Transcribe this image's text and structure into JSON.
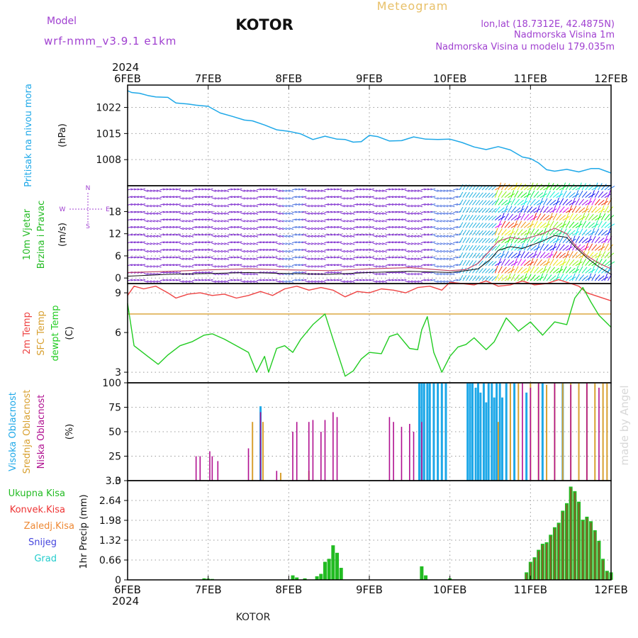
{
  "header": {
    "model_label": "Model",
    "model_name": "wrf-nmm_v3.9.1 e1km",
    "station": "KOTOR",
    "product": "Meteogram",
    "lonlat": "lon,lat (18.7312E, 42.4875N)",
    "altitude": "Nadmorska Visina 1m",
    "model_altitude": "Nadmorska Visina u modelu 179.035m",
    "watermark": "made by Angel",
    "footer_station": "KOTOR",
    "year_top": "2024",
    "year_bottom": "2024"
  },
  "colors": {
    "pressure": "#1ea8e8",
    "temp": "#ee4444",
    "sfc": "#d8a030",
    "dew": "#22cc22",
    "high": "#1ea8e8",
    "mid": "#d8a030",
    "low": "#b01090",
    "wind_barb": "#7722cc",
    "total": "#22bb22",
    "conv": "#ee3333",
    "frozen": "#ee8833",
    "snow": "#4444dd",
    "hail": "#22cccc"
  },
  "chart_data": [
    {
      "type": "line",
      "panel": "pressure",
      "ylabel_lines": [
        "Pritisak na nivou mora",
        "(hPa)"
      ],
      "x_ticks": [
        "6FEB",
        "7FEB",
        "8FEB",
        "9FEB",
        "10FEB",
        "11FEB",
        "12FEB"
      ],
      "ylim": [
        1001,
        1028
      ],
      "y_ticks": [
        1008,
        1015,
        1022
      ],
      "series": [
        {
          "days": [
            0,
            0.05,
            0.15,
            0.25,
            0.35,
            0.5,
            0.6,
            0.75,
            0.85,
            1.0,
            1.15,
            1.3,
            1.45,
            1.55,
            1.7,
            1.85,
            2.0,
            2.15,
            2.3,
            2.45,
            2.6,
            2.7,
            2.8,
            2.9,
            3.0,
            3.1,
            3.25,
            3.4,
            3.55,
            3.7,
            3.85,
            4.0,
            4.15,
            4.3,
            4.45,
            4.6,
            4.75,
            4.9,
            5.0,
            5.1,
            5.2,
            5.3,
            5.45,
            5.6,
            5.75,
            5.85,
            5.95,
            6.0
          ],
          "values": [
            1026.5,
            1026,
            1025.8,
            1025.2,
            1024.8,
            1024.7,
            1023.2,
            1022.9,
            1022.6,
            1022.3,
            1020.5,
            1019.6,
            1018.6,
            1018.4,
            1017.3,
            1016,
            1015.6,
            1014.9,
            1013.4,
            1014.3,
            1013.5,
            1013.4,
            1012.7,
            1012.8,
            1014.5,
            1014.2,
            1013,
            1013.1,
            1014.1,
            1013.5,
            1013.4,
            1013.5,
            1012.6,
            1011.4,
            1010.7,
            1011.5,
            1010.6,
            1008.7,
            1008.3,
            1007.1,
            1005.3,
            1004.9,
            1005.4,
            1004.7,
            1005.6,
            1005.6,
            1004.8,
            1004.4
          ]
        }
      ]
    },
    {
      "type": "line",
      "panel": "wind",
      "ylabel_lines": [
        "10m Vjetar",
        "Brzina i Pravac",
        "(m/s)"
      ],
      "compass": [
        "W",
        "E",
        "S",
        "N"
      ],
      "ylim": [
        -1.5,
        25
      ],
      "y_ticks": [
        0,
        6,
        12,
        18
      ],
      "series": [
        {
          "name": "wind_speed",
          "days": [
            0,
            0.5,
            1.0,
            1.5,
            2.0,
            2.5,
            3.0,
            3.5,
            4.0,
            4.2,
            4.35,
            4.5,
            4.6,
            4.75,
            4.9,
            5.0,
            5.15,
            5.3,
            5.45,
            5.55,
            5.7,
            5.85,
            6.0
          ],
          "values": [
            1.5,
            1.8,
            2.2,
            2.5,
            2.2,
            2.0,
            2.5,
            2.8,
            2.0,
            2.3,
            4.0,
            7.5,
            10,
            11,
            10.5,
            11,
            12,
            13.5,
            12,
            9,
            6,
            4,
            2.5
          ]
        },
        {
          "name": "wind_gust",
          "days": [
            0,
            0.5,
            1.0,
            1.5,
            2.0,
            2.5,
            3.0,
            3.5,
            4.0,
            4.2,
            4.35,
            4.5,
            4.6,
            4.75,
            4.9,
            5.0,
            5.15,
            5.3,
            5.45,
            5.55,
            5.7,
            5.85,
            6.0
          ],
          "values": [
            0.5,
            1.0,
            1.2,
            1.5,
            1.2,
            1.0,
            1.5,
            1.8,
            1.5,
            2.0,
            2.5,
            5.0,
            7.5,
            8.5,
            8.0,
            8.8,
            10,
            11.5,
            11,
            8.5,
            5.5,
            3.0,
            1.0
          ]
        }
      ]
    },
    {
      "type": "line",
      "panel": "temperature",
      "ylabel_lines": [
        "2m Temp",
        "SFC Temp",
        "dewpt Temp",
        "(C)"
      ],
      "ylim": [
        2.2,
        9.7
      ],
      "y_ticks": [
        3,
        6,
        9
      ],
      "series": [
        {
          "name": "2m Temp",
          "days": [
            0,
            0.08,
            0.2,
            0.35,
            0.5,
            0.6,
            0.75,
            0.9,
            1.05,
            1.2,
            1.35,
            1.5,
            1.65,
            1.8,
            1.95,
            2.1,
            2.25,
            2.4,
            2.55,
            2.7,
            2.85,
            3.0,
            3.15,
            3.3,
            3.45,
            3.6,
            3.75,
            3.9,
            4.0,
            4.15,
            4.3,
            4.45,
            4.6,
            4.75,
            4.9,
            5.05,
            5.2,
            5.35,
            5.5,
            5.6,
            5.7,
            5.85,
            6.0
          ],
          "values": [
            8.8,
            9.5,
            9.3,
            9.5,
            9.0,
            8.6,
            8.9,
            9.0,
            8.8,
            8.9,
            8.6,
            8.8,
            9.1,
            8.8,
            9.3,
            9.5,
            9.2,
            9.4,
            9.2,
            8.7,
            9.1,
            9.0,
            9.3,
            9.2,
            9.0,
            9.4,
            9.5,
            9.2,
            9.8,
            9.7,
            9.6,
            9.9,
            9.5,
            9.6,
            9.9,
            9.6,
            9.7,
            10.0,
            9.7,
            9.5,
            9.0,
            8.7,
            8.4
          ]
        },
        {
          "name": "SFC Temp",
          "days": [
            0,
            6.0
          ],
          "values": [
            7.4,
            7.4
          ]
        },
        {
          "name": "dewpt Temp",
          "days": [
            0,
            0.08,
            0.25,
            0.38,
            0.5,
            0.65,
            0.8,
            0.95,
            1.05,
            1.2,
            1.35,
            1.5,
            1.6,
            1.7,
            1.75,
            1.85,
            1.95,
            2.05,
            2.15,
            2.3,
            2.45,
            2.55,
            2.7,
            2.8,
            2.9,
            3.0,
            3.15,
            3.25,
            3.35,
            3.5,
            3.6,
            3.65,
            3.72,
            3.8,
            3.9,
            4.0,
            4.1,
            4.2,
            4.3,
            4.45,
            4.55,
            4.7,
            4.85,
            5.0,
            5.15,
            5.3,
            5.45,
            5.55,
            5.65,
            5.75,
            5.85,
            6.0
          ],
          "values": [
            8.2,
            5.0,
            4.2,
            3.6,
            4.3,
            5.0,
            5.3,
            5.8,
            5.9,
            5.5,
            5.0,
            4.5,
            3.0,
            4.2,
            3.0,
            4.8,
            5.0,
            4.5,
            5.5,
            6.6,
            7.4,
            5.5,
            2.7,
            3.1,
            4.0,
            4.5,
            4.4,
            5.7,
            5.9,
            4.8,
            4.7,
            6.2,
            7.2,
            4.5,
            3.0,
            4.2,
            4.9,
            5.1,
            5.6,
            4.7,
            5.3,
            7.1,
            6.1,
            6.8,
            5.8,
            6.8,
            6.6,
            8.6,
            9.4,
            8.3,
            7.3,
            6.4
          ]
        }
      ]
    },
    {
      "type": "bar",
      "panel": "clouds",
      "ylabel_lines": [
        "Visoka Oblacnost",
        "Srednja Oblacnost",
        "Niska Oblacnost",
        "(%)"
      ],
      "ylim": [
        0,
        100
      ],
      "y_ticks": [
        0,
        25,
        50,
        75,
        100
      ],
      "series": [
        {
          "name": "Niska Oblacnost",
          "days": [
            0.85,
            0.9,
            1.02,
            1.05,
            1.12,
            1.5,
            1.65,
            1.85,
            2.05,
            2.1,
            2.25,
            2.3,
            2.4,
            2.45,
            2.55,
            2.6,
            3.25,
            3.3,
            3.4,
            3.5,
            3.55,
            3.65,
            4.9,
            5.0,
            5.1,
            5.3,
            5.5,
            5.7,
            5.85
          ],
          "values": [
            25,
            25,
            30,
            25,
            20,
            33,
            70,
            10,
            50,
            60,
            60,
            62,
            50,
            62,
            70,
            65,
            65,
            60,
            55,
            58,
            50,
            60,
            100,
            95,
            100,
            100,
            98,
            100,
            95
          ]
        },
        {
          "name": "Srednja Oblacnost",
          "days": [
            1.55,
            1.68,
            1.9,
            2.25,
            4.6,
            4.75,
            4.85,
            5.0,
            5.1,
            5.2,
            5.3,
            5.4,
            5.5,
            5.6,
            5.7,
            5.8,
            5.9,
            5.95
          ],
          "values": [
            60,
            60,
            8,
            10,
            60,
            100,
            100,
            100,
            100,
            98,
            100,
            100,
            100,
            100,
            100,
            100,
            100,
            100
          ]
        },
        {
          "name": "Visoka Oblacnost",
          "days": [
            1.65,
            3.62,
            3.65,
            3.68,
            3.72,
            3.75,
            3.8,
            3.85,
            3.9,
            3.95,
            4.22,
            4.25,
            4.28,
            4.32,
            4.35,
            4.38,
            4.42,
            4.45,
            4.48,
            4.52,
            4.55,
            4.58,
            4.62,
            4.65,
            4.7,
            4.8,
            4.95,
            5.15,
            5.4
          ],
          "values": [
            76,
            100,
            100,
            100,
            100,
            100,
            100,
            100,
            100,
            100,
            100,
            100,
            100,
            95,
            100,
            90,
            100,
            80,
            100,
            100,
            85,
            100,
            100,
            85,
            100,
            100,
            90,
            100,
            100
          ]
        }
      ]
    },
    {
      "type": "bar",
      "panel": "precip",
      "ylabel_lines": [
        "1hr Precip (mm)"
      ],
      "legend": [
        "Ukupna Kisa",
        "Konvek.Kisa",
        "Zaledj.Kisa",
        "Snijeg",
        "Grad"
      ],
      "ylim": [
        0,
        3.3
      ],
      "y_ticks": [
        0,
        0.66,
        1.32,
        1.98,
        2.64,
        3.3
      ],
      "series": [
        {
          "name": "Ukupna Kisa",
          "days": [
            0.95,
            1.0,
            1.05,
            2.05,
            2.1,
            2.2,
            2.35,
            2.4,
            2.45,
            2.5,
            2.55,
            2.6,
            2.65,
            3.65,
            3.7,
            4.0,
            4.95,
            5.0,
            5.05,
            5.1,
            5.15,
            5.2,
            5.25,
            5.3,
            5.35,
            5.4,
            5.45,
            5.5,
            5.55,
            5.6,
            5.65,
            5.7,
            5.75,
            5.8,
            5.85,
            5.9,
            5.95,
            6.0
          ],
          "values": [
            0.05,
            0.04,
            0.03,
            0.15,
            0.08,
            0.05,
            0.12,
            0.2,
            0.6,
            0.7,
            1.15,
            0.9,
            0.4,
            0.45,
            0.15,
            0.05,
            0.25,
            0.6,
            0.75,
            1.0,
            1.2,
            1.25,
            1.5,
            1.75,
            1.9,
            2.3,
            2.55,
            3.1,
            2.95,
            2.6,
            2.0,
            2.1,
            1.95,
            1.65,
            1.3,
            0.7,
            0.3,
            0.25
          ]
        }
      ]
    }
  ]
}
